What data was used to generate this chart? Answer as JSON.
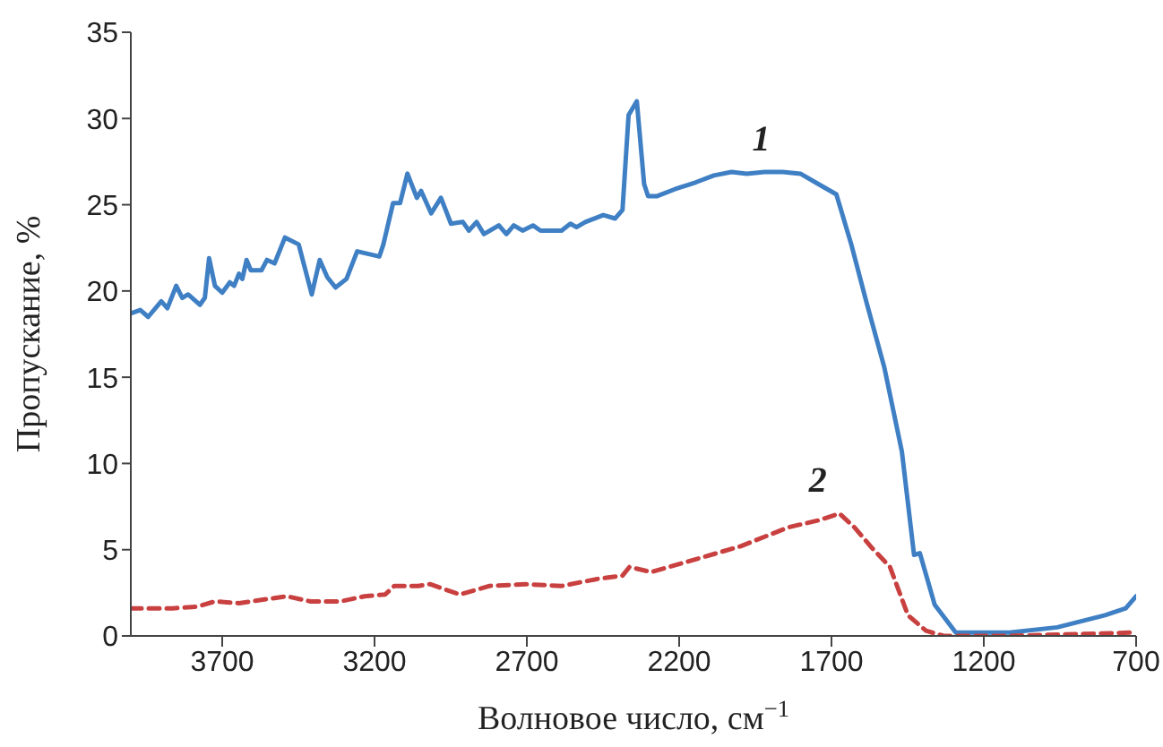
{
  "chart_data": {
    "type": "line",
    "xlabel": "Волновое число, см$^{−1}$",
    "ylabel": "Пропускание, %",
    "xlim": [
      4000,
      700
    ],
    "xticks": [
      3700,
      3200,
      2700,
      2200,
      1700,
      1200,
      700
    ],
    "ylim": [
      0,
      35
    ],
    "yticks": [
      0,
      5,
      10,
      15,
      20,
      25,
      30,
      35
    ],
    "grid": false,
    "marker": "none",
    "series": [
      {
        "name": "1",
        "color": "#3f7fc4",
        "line_style": "solid",
        "x": [
          4000,
          3969,
          3943,
          3900,
          3880,
          3851,
          3831,
          3812,
          3773,
          3757,
          3743,
          3724,
          3700,
          3675,
          3661,
          3645,
          3634,
          3620,
          3606,
          3571,
          3553,
          3528,
          3494,
          3449,
          3406,
          3380,
          3355,
          3328,
          3292,
          3257,
          3184,
          3171,
          3139,
          3116,
          3092,
          3061,
          3047,
          3014,
          2982,
          2949,
          2910,
          2890,
          2865,
          2841,
          2792,
          2767,
          2743,
          2714,
          2680,
          2655,
          2586,
          2557,
          2537,
          2508,
          2449,
          2410,
          2386,
          2366,
          2339,
          2315,
          2302,
          2272,
          2214,
          2145,
          2086,
          2028,
          1978,
          1919,
          1860,
          1802,
          1743,
          1684,
          1635,
          1586,
          1527,
          1469,
          1429,
          1410,
          1361,
          1292,
          1116,
          959,
          802,
          734,
          700
        ],
        "values": [
          18.7,
          18.9,
          18.5,
          19.4,
          19.0,
          20.3,
          19.6,
          19.8,
          19.2,
          19.6,
          21.9,
          20.3,
          19.9,
          20.5,
          20.3,
          21.0,
          20.7,
          21.8,
          21.2,
          21.2,
          21.8,
          21.6,
          23.1,
          22.7,
          19.8,
          21.8,
          20.8,
          20.2,
          20.7,
          22.3,
          22.0,
          22.7,
          25.1,
          25.1,
          26.8,
          25.4,
          25.8,
          24.5,
          25.4,
          23.9,
          24.0,
          23.5,
          24.0,
          23.3,
          23.8,
          23.3,
          23.8,
          23.5,
          23.8,
          23.5,
          23.5,
          23.9,
          23.7,
          24.0,
          24.4,
          24.2,
          24.7,
          30.2,
          31.0,
          26.2,
          25.5,
          25.5,
          25.9,
          26.3,
          26.7,
          26.9,
          26.8,
          26.9,
          26.9,
          26.8,
          26.2,
          25.6,
          22.7,
          19.4,
          15.6,
          10.7,
          4.7,
          4.8,
          1.8,
          0.2,
          0.2,
          0.5,
          1.2,
          1.6,
          2.3
        ]
      },
      {
        "name": "2",
        "color": "#c8403f",
        "line_style": "dashed",
        "x": [
          4000,
          3863,
          3782,
          3724,
          3645,
          3567,
          3488,
          3410,
          3312,
          3233,
          3165,
          3135,
          3057,
          3018,
          2920,
          2822,
          2704,
          2586,
          2469,
          2386,
          2363,
          2292,
          2194,
          1998,
          1841,
          1743,
          1674,
          1625,
          1567,
          1508,
          1449,
          1390,
          1331,
          1116,
          700
        ],
        "values": [
          1.6,
          1.6,
          1.7,
          2.0,
          1.9,
          2.1,
          2.3,
          2.0,
          2.0,
          2.3,
          2.4,
          2.9,
          2.9,
          3.0,
          2.4,
          2.9,
          3.0,
          2.9,
          3.3,
          3.5,
          4.0,
          3.7,
          4.2,
          5.2,
          6.3,
          6.7,
          7.1,
          6.3,
          5.1,
          4.0,
          1.2,
          0.3,
          0.0,
          0.0,
          0.2
        ]
      }
    ]
  }
}
